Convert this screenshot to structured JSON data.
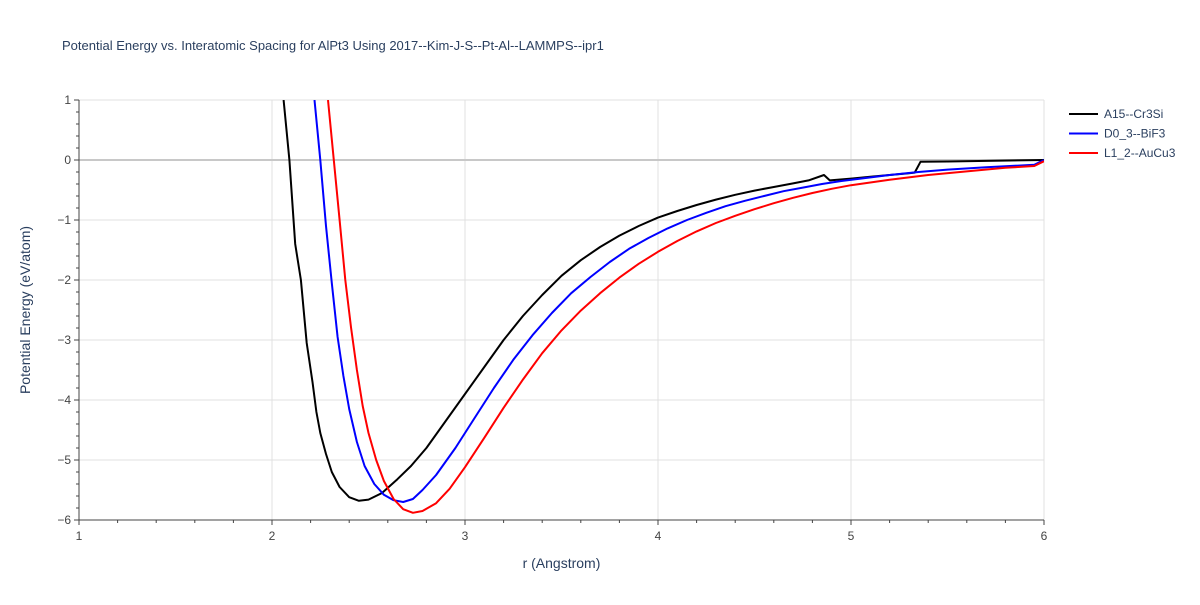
{
  "chart_data": {
    "type": "line",
    "title": "Potential Energy vs. Interatomic Spacing for AlPt3 Using 2017--Kim-J-S--Pt-Al--LAMMPS--ipr1",
    "xlabel": "r (Angstrom)",
    "ylabel": "Potential Energy (eV/atom)",
    "xlim": [
      1,
      6
    ],
    "ylim": [
      -6,
      1
    ],
    "x_ticks": [
      1,
      2,
      3,
      4,
      5,
      6
    ],
    "y_ticks": [
      -6,
      -5,
      -4,
      -3,
      -2,
      -1,
      0,
      1
    ],
    "x_tick_labels": [
      "1",
      "2",
      "3",
      "4",
      "5",
      "6"
    ],
    "y_tick_labels": [
      "−6",
      "−5",
      "−4",
      "−3",
      "−2",
      "−1",
      "0",
      "1"
    ],
    "grid": true,
    "legend_position": "top-right",
    "series": [
      {
        "name": "A15--Cr3Si",
        "color": "#000000",
        "points": [
          [
            2.06,
            1.0
          ],
          [
            2.09,
            0.0
          ],
          [
            2.12,
            -1.4
          ],
          [
            2.15,
            -2.0
          ],
          [
            2.18,
            -3.05
          ],
          [
            2.21,
            -3.7
          ],
          [
            2.23,
            -4.2
          ],
          [
            2.25,
            -4.55
          ],
          [
            2.28,
            -4.9
          ],
          [
            2.31,
            -5.2
          ],
          [
            2.35,
            -5.45
          ],
          [
            2.4,
            -5.62
          ],
          [
            2.45,
            -5.68
          ],
          [
            2.5,
            -5.66
          ],
          [
            2.57,
            -5.55
          ],
          [
            2.65,
            -5.32
          ],
          [
            2.72,
            -5.1
          ],
          [
            2.8,
            -4.8
          ],
          [
            2.9,
            -4.35
          ],
          [
            3.0,
            -3.9
          ],
          [
            3.1,
            -3.45
          ],
          [
            3.2,
            -3.0
          ],
          [
            3.3,
            -2.6
          ],
          [
            3.4,
            -2.25
          ],
          [
            3.5,
            -1.93
          ],
          [
            3.6,
            -1.67
          ],
          [
            3.7,
            -1.45
          ],
          [
            3.8,
            -1.26
          ],
          [
            3.9,
            -1.1
          ],
          [
            4.0,
            -0.96
          ],
          [
            4.1,
            -0.85
          ],
          [
            4.2,
            -0.75
          ],
          [
            4.3,
            -0.66
          ],
          [
            4.4,
            -0.58
          ],
          [
            4.5,
            -0.51
          ],
          [
            4.6,
            -0.45
          ],
          [
            4.7,
            -0.39
          ],
          [
            4.78,
            -0.34
          ],
          [
            4.86,
            -0.25
          ],
          [
            4.89,
            -0.34
          ],
          [
            5.0,
            -0.31
          ],
          [
            5.1,
            -0.28
          ],
          [
            5.2,
            -0.25
          ],
          [
            5.3,
            -0.22
          ],
          [
            5.33,
            -0.21
          ],
          [
            5.36,
            -0.03
          ],
          [
            5.5,
            -0.025
          ],
          [
            6.0,
            0.0
          ]
        ]
      },
      {
        "name": "D0_3--BiF3",
        "color": "#0000ff",
        "points": [
          [
            2.22,
            1.0
          ],
          [
            2.25,
            0.0
          ],
          [
            2.28,
            -1.1
          ],
          [
            2.31,
            -2.05
          ],
          [
            2.34,
            -2.95
          ],
          [
            2.37,
            -3.6
          ],
          [
            2.4,
            -4.15
          ],
          [
            2.44,
            -4.7
          ],
          [
            2.48,
            -5.1
          ],
          [
            2.53,
            -5.4
          ],
          [
            2.58,
            -5.58
          ],
          [
            2.63,
            -5.67
          ],
          [
            2.68,
            -5.7
          ],
          [
            2.73,
            -5.65
          ],
          [
            2.78,
            -5.5
          ],
          [
            2.85,
            -5.25
          ],
          [
            2.95,
            -4.8
          ],
          [
            3.05,
            -4.3
          ],
          [
            3.15,
            -3.8
          ],
          [
            3.25,
            -3.33
          ],
          [
            3.35,
            -2.92
          ],
          [
            3.45,
            -2.55
          ],
          [
            3.55,
            -2.22
          ],
          [
            3.65,
            -1.95
          ],
          [
            3.75,
            -1.7
          ],
          [
            3.85,
            -1.48
          ],
          [
            3.95,
            -1.3
          ],
          [
            4.05,
            -1.14
          ],
          [
            4.15,
            -1.0
          ],
          [
            4.25,
            -0.88
          ],
          [
            4.35,
            -0.77
          ],
          [
            4.45,
            -0.68
          ],
          [
            4.55,
            -0.6
          ],
          [
            4.65,
            -0.52
          ],
          [
            4.75,
            -0.46
          ],
          [
            4.85,
            -0.4
          ],
          [
            4.95,
            -0.35
          ],
          [
            5.05,
            -0.31
          ],
          [
            5.2,
            -0.25
          ],
          [
            5.35,
            -0.2
          ],
          [
            5.5,
            -0.16
          ],
          [
            5.7,
            -0.12
          ],
          [
            5.95,
            -0.08
          ],
          [
            6.0,
            0.0
          ]
        ]
      },
      {
        "name": "L1_2--AuCu3",
        "color": "#ff0000",
        "points": [
          [
            2.29,
            1.0
          ],
          [
            2.32,
            0.0
          ],
          [
            2.35,
            -1.0
          ],
          [
            2.38,
            -2.0
          ],
          [
            2.41,
            -2.8
          ],
          [
            2.44,
            -3.5
          ],
          [
            2.47,
            -4.1
          ],
          [
            2.5,
            -4.55
          ],
          [
            2.54,
            -5.0
          ],
          [
            2.58,
            -5.35
          ],
          [
            2.63,
            -5.65
          ],
          [
            2.68,
            -5.82
          ],
          [
            2.73,
            -5.88
          ],
          [
            2.78,
            -5.85
          ],
          [
            2.85,
            -5.72
          ],
          [
            2.92,
            -5.48
          ],
          [
            3.0,
            -5.12
          ],
          [
            3.1,
            -4.63
          ],
          [
            3.2,
            -4.13
          ],
          [
            3.3,
            -3.66
          ],
          [
            3.4,
            -3.22
          ],
          [
            3.5,
            -2.84
          ],
          [
            3.6,
            -2.51
          ],
          [
            3.7,
            -2.22
          ],
          [
            3.8,
            -1.96
          ],
          [
            3.9,
            -1.73
          ],
          [
            4.0,
            -1.53
          ],
          [
            4.1,
            -1.35
          ],
          [
            4.2,
            -1.19
          ],
          [
            4.3,
            -1.05
          ],
          [
            4.4,
            -0.93
          ],
          [
            4.5,
            -0.82
          ],
          [
            4.6,
            -0.72
          ],
          [
            4.7,
            -0.63
          ],
          [
            4.8,
            -0.55
          ],
          [
            4.9,
            -0.48
          ],
          [
            5.0,
            -0.42
          ],
          [
            5.2,
            -0.33
          ],
          [
            5.4,
            -0.25
          ],
          [
            5.6,
            -0.19
          ],
          [
            5.8,
            -0.13
          ],
          [
            5.95,
            -0.1
          ],
          [
            6.0,
            -0.02
          ]
        ]
      }
    ]
  }
}
